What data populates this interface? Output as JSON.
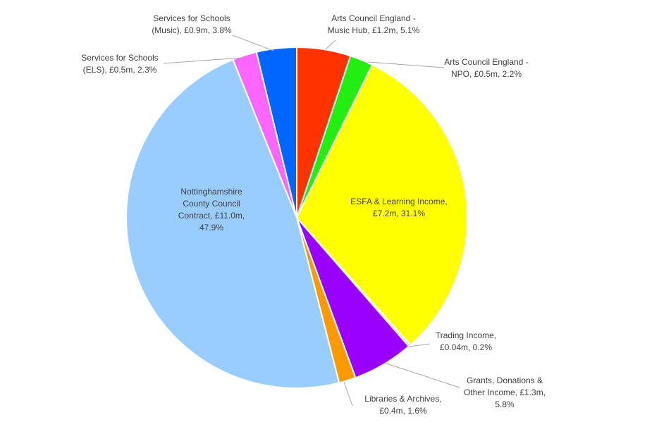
{
  "chart_data": {
    "type": "pie",
    "value_labels": [
      "Arts Council England - Music Hub, £1.2m, 5.1%",
      "Arts Council England - NPO, £0.5m, 2.2%",
      "ESFA & Learning Income, £7.2m, 31.1%",
      "Trading Income, £0.04m, 0.2%",
      "Grants, Donations & Other Income, £1.3m, 5.8%",
      "Libraries & Archives, £0.4m, 1.6%",
      "Nottinghamshire County Council Contract, £11.0m, 47.9%",
      "Services for Schools (ELS), £0.5m, 2.3%",
      "Services for Schools (Music), £0.9m, 3.8%"
    ],
    "values": [
      5.1,
      2.2,
      31.1,
      0.2,
      5.8,
      1.6,
      47.9,
      2.3,
      3.8
    ],
    "colors": [
      "#ff3300",
      "#22ee11",
      "#ffff00",
      "#bbbbbb",
      "#9900ff",
      "#ff9900",
      "#99ccff",
      "#ff66ff",
      "#0066ff"
    ]
  }
}
